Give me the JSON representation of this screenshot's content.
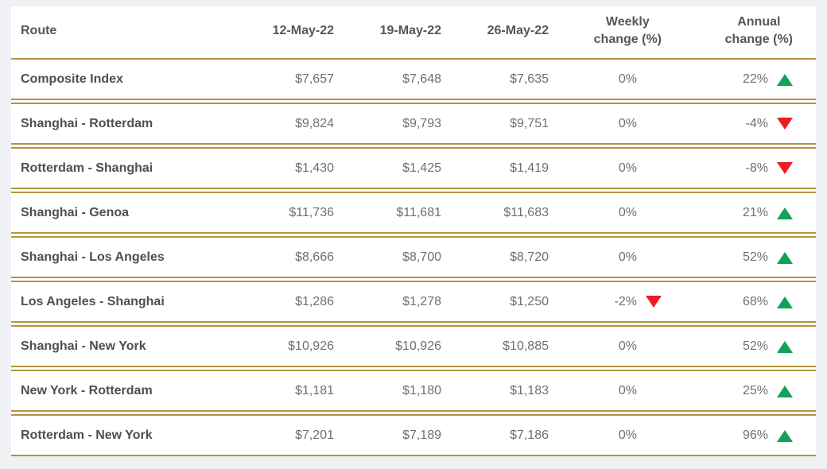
{
  "page": {
    "background": "#eff1f4",
    "card_background": "#ffffff",
    "border_color": "#b5923e",
    "up_color": "#12a158",
    "down_color": "#ec1c24"
  },
  "table": {
    "header": {
      "route": "Route",
      "date1": "12-May-22",
      "date2": "19-May-22",
      "date3": "26-May-22",
      "weekly_line1": "Weekly",
      "weekly_line2": "change (%)",
      "annual_line1": "Annual",
      "annual_line2": "change (%)"
    },
    "rows": [
      {
        "route": "Composite Index",
        "v1": "$7,657",
        "v2": "$7,648",
        "v3": "$7,635",
        "weekly": "0%",
        "weekly_dir": "none",
        "annual": "22%",
        "annual_dir": "up"
      },
      {
        "route": "Shanghai - Rotterdam",
        "v1": "$9,824",
        "v2": "$9,793",
        "v3": "$9,751",
        "weekly": "0%",
        "weekly_dir": "none",
        "annual": "-4%",
        "annual_dir": "down"
      },
      {
        "route": "Rotterdam - Shanghai",
        "v1": "$1,430",
        "v2": "$1,425",
        "v3": "$1,419",
        "weekly": "0%",
        "weekly_dir": "none",
        "annual": "-8%",
        "annual_dir": "down"
      },
      {
        "route": "Shanghai - Genoa",
        "v1": "$11,736",
        "v2": "$11,681",
        "v3": "$11,683",
        "weekly": "0%",
        "weekly_dir": "none",
        "annual": "21%",
        "annual_dir": "up"
      },
      {
        "route": "Shanghai - Los Angeles",
        "v1": "$8,666",
        "v2": "$8,700",
        "v3": "$8,720",
        "weekly": "0%",
        "weekly_dir": "none",
        "annual": "52%",
        "annual_dir": "up"
      },
      {
        "route": "Los Angeles - Shanghai",
        "v1": "$1,286",
        "v2": "$1,278",
        "v3": "$1,250",
        "weekly": "-2%",
        "weekly_dir": "down",
        "annual": "68%",
        "annual_dir": "up"
      },
      {
        "route": "Shanghai - New York",
        "v1": "$10,926",
        "v2": "$10,926",
        "v3": "$10,885",
        "weekly": "0%",
        "weekly_dir": "none",
        "annual": "52%",
        "annual_dir": "up"
      },
      {
        "route": "New York - Rotterdam",
        "v1": "$1,181",
        "v2": "$1,180",
        "v3": "$1,183",
        "weekly": "0%",
        "weekly_dir": "none",
        "annual": "25%",
        "annual_dir": "up"
      },
      {
        "route": "Rotterdam - New York",
        "v1": "$7,201",
        "v2": "$7,189",
        "v3": "$7,186",
        "weekly": "0%",
        "weekly_dir": "none",
        "annual": "96%",
        "annual_dir": "up"
      }
    ]
  },
  "chart_data": {
    "type": "table",
    "title": "",
    "columns": [
      "Route",
      "12-May-22",
      "19-May-22",
      "26-May-22",
      "Weekly change (%)",
      "Annual change (%)"
    ],
    "rows": [
      [
        "Composite Index",
        7657,
        7648,
        7635,
        "0%",
        "22% up"
      ],
      [
        "Shanghai - Rotterdam",
        9824,
        9793,
        9751,
        "0%",
        "-4% down"
      ],
      [
        "Rotterdam - Shanghai",
        1430,
        1425,
        1419,
        "0%",
        "-8% down"
      ],
      [
        "Shanghai - Genoa",
        11736,
        11681,
        11683,
        "0%",
        "21% up"
      ],
      [
        "Shanghai - Los Angeles",
        8666,
        8700,
        8720,
        "0%",
        "52% up"
      ],
      [
        "Los Angeles - Shanghai",
        1286,
        1278,
        1250,
        "-2% down",
        "68% up"
      ],
      [
        "Shanghai - New York",
        10926,
        10926,
        10885,
        "0%",
        "52% up"
      ],
      [
        "New York - Rotterdam",
        1181,
        1180,
        1183,
        "0%",
        "25% up"
      ],
      [
        "Rotterdam - New York",
        7201,
        7189,
        7186,
        "0%",
        "96% up"
      ]
    ]
  }
}
